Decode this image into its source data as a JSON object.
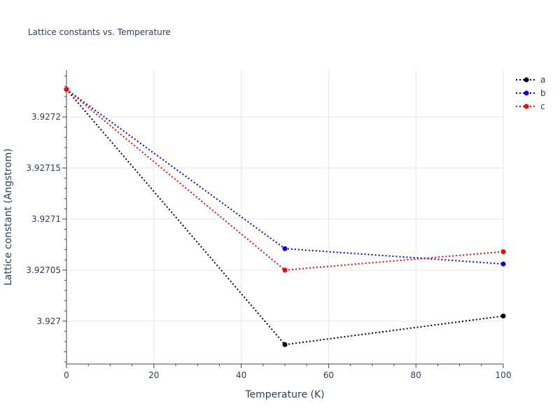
{
  "chart_data": {
    "type": "line",
    "title": "Lattice constants vs. Temperature",
    "xlabel": "Temperature (K)",
    "ylabel": "Lattice constant (Angstrom)",
    "x": [
      0,
      50,
      100
    ],
    "xlim": [
      0,
      100
    ],
    "ylim": [
      3.926958,
      3.927246
    ],
    "x_ticks": [
      0,
      20,
      40,
      60,
      80,
      100
    ],
    "x_tick_labels": [
      "0",
      "20",
      "40",
      "60",
      "80",
      "100"
    ],
    "y_ticks": [
      3.927,
      3.92705,
      3.9271,
      3.92715,
      3.9272
    ],
    "y_tick_labels": [
      "3.927",
      "3.92705",
      "3.9271",
      "3.92715",
      "3.9272"
    ],
    "grid": true,
    "legend_position": "top-right",
    "series": [
      {
        "name": "a",
        "color": "#000000",
        "values": [
          3.927227,
          3.926977,
          3.927005
        ]
      },
      {
        "name": "b",
        "color": "#0000ff",
        "values": [
          3.927227,
          3.927071,
          3.927056
        ]
      },
      {
        "name": "c",
        "color": "#ff0000",
        "values": [
          3.927227,
          3.92705,
          3.927068
        ]
      }
    ]
  }
}
